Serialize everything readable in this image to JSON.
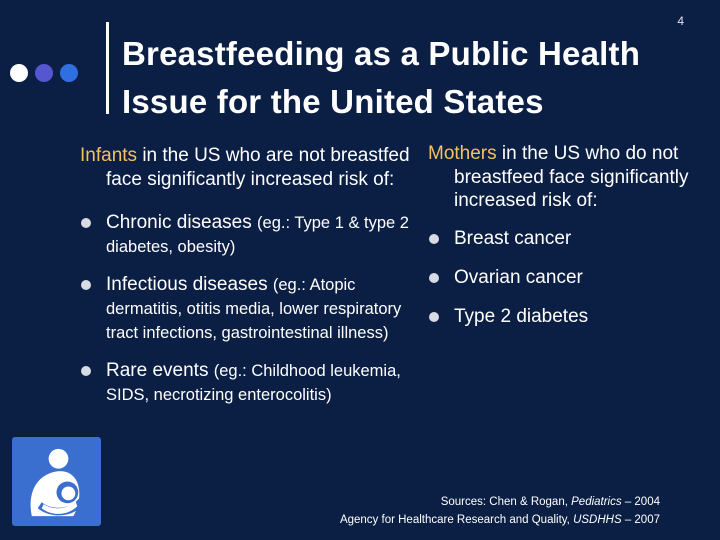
{
  "slide_number": "4",
  "title": "Breastfeeding as a Public Health Issue for the United States",
  "colors": {
    "background": "#0b1f45",
    "keyword": "#f5c15c",
    "dot_white": "#ffffff",
    "dot_purple": "#5457d0",
    "dot_blue": "#2f6fe0",
    "logo": "#3a6fcf"
  },
  "left": {
    "keyword": "Infants",
    "intro_rest": " in the US who are not breastfed face significantly increased risk of:",
    "items": [
      {
        "main": "Chronic diseases ",
        "detail": "(eg.: Type 1 & type 2 diabetes, obesity)"
      },
      {
        "main": "Infectious diseases ",
        "detail": "(eg.: Atopic dermatitis, otitis media, lower respiratory tract infections, gastrointestinal illness)"
      },
      {
        "main": "Rare events ",
        "detail": "(eg.: Childhood leukemia, SIDS, necrotizing enterocolitis)"
      }
    ]
  },
  "right": {
    "keyword": "Mothers",
    "intro_rest": " in the US who do not breastfeed face significantly increased risk of:",
    "items": [
      "Breast cancer",
      "Ovarian cancer",
      "Type 2 diabetes"
    ]
  },
  "sources": {
    "line1_prefix": "Sources: Chen & Rogan, ",
    "line1_journal": "Pediatrics",
    "line1_suffix": " – 2004",
    "line2_prefix": "Agency for Healthcare Research and Quality, ",
    "line2_agency": "USDHHS",
    "line2_suffix": " – 2007"
  },
  "logo_icon": "breastfeeding-symbol-icon"
}
